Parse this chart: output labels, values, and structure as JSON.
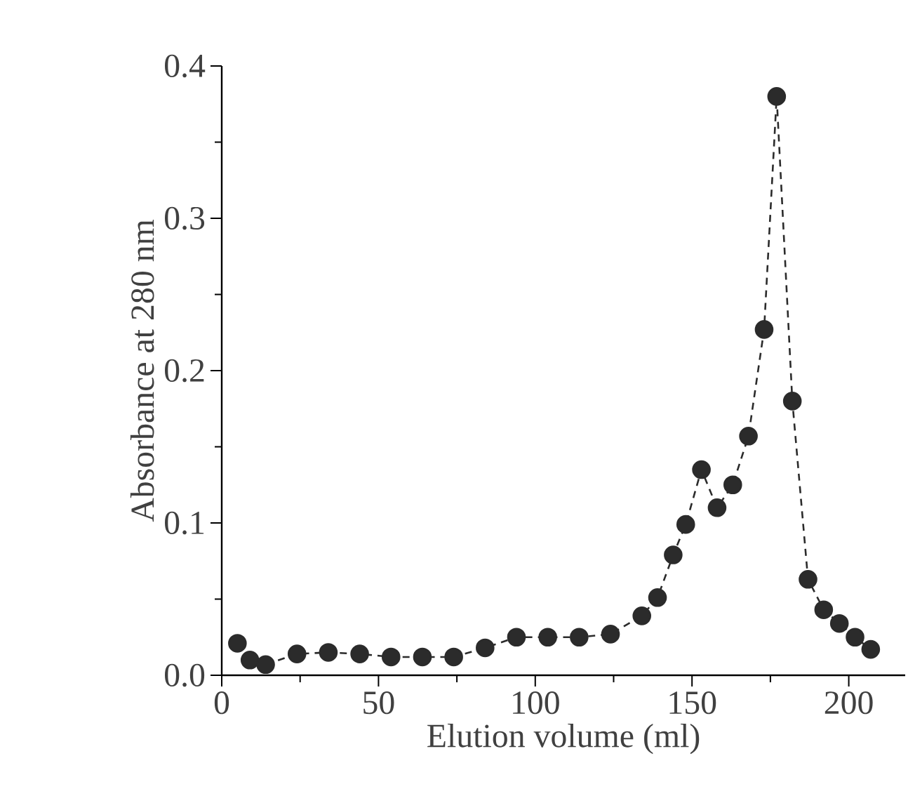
{
  "chart_data": {
    "type": "line",
    "xlabel": "Elution volume (ml)",
    "ylabel": "Absorbance at 280 nm",
    "x": [
      5,
      9,
      14,
      24,
      34,
      44,
      54,
      64,
      74,
      84,
      94,
      104,
      114,
      124,
      134,
      139,
      144,
      148,
      153,
      158,
      163,
      168,
      173,
      177,
      182,
      187,
      192,
      197,
      202,
      207
    ],
    "values": [
      0.021,
      0.01,
      0.007,
      0.014,
      0.015,
      0.014,
      0.012,
      0.012,
      0.012,
      0.018,
      0.025,
      0.025,
      0.025,
      0.027,
      0.039,
      0.051,
      0.079,
      0.099,
      0.135,
      0.11,
      0.125,
      0.157,
      0.227,
      0.38,
      0.18,
      0.063,
      0.043,
      0.034,
      0.025,
      0.017
    ],
    "color": "#2b2b2b",
    "marker": "circle",
    "line_style": "dashed",
    "xlim": [
      0,
      218
    ],
    "ylim": [
      0,
      0.4
    ],
    "xticks": [
      0,
      50,
      100,
      150,
      200
    ],
    "yticks": [
      {
        "value": 0,
        "label": "0.0"
      },
      0.1,
      0.2,
      0.3,
      0.4
    ],
    "grid": false
  }
}
